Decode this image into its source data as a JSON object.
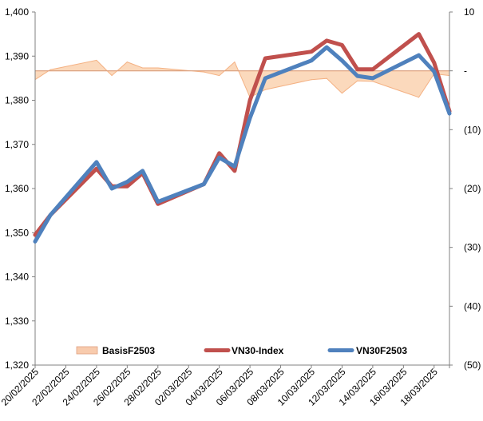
{
  "chart_data": {
    "type": "line",
    "title": "",
    "x": [
      "20/02/2025",
      "21/02/2025",
      "24/02/2025",
      "25/02/2025",
      "26/02/2025",
      "27/02/2025",
      "28/02/2025",
      "03/03/2025",
      "04/03/2025",
      "05/03/2025",
      "06/03/2025",
      "07/03/2025",
      "10/03/2025",
      "11/03/2025",
      "12/03/2025",
      "13/03/2025",
      "14/03/2025",
      "17/03/2025",
      "18/03/2025",
      "19/03/2025"
    ],
    "x_tick_labels": [
      "20/02/2025",
      "22/02/2025",
      "24/02/2025",
      "26/02/2025",
      "28/02/2025",
      "02/03/2025",
      "04/03/2025",
      "06/03/2025",
      "08/03/2025",
      "10/03/2025",
      "12/03/2025",
      "14/03/2025",
      "16/03/2025",
      "18/03/2025"
    ],
    "x_start": "20/02/2025",
    "x_end": "19/03/2025",
    "y_left": {
      "min": 1320,
      "max": 1400,
      "step": 10,
      "tick_labels": [
        "1,320",
        "1,330",
        "1,340",
        "1,350",
        "1,360",
        "1,370",
        "1,380",
        "1,390",
        "1,400"
      ]
    },
    "y_right": {
      "min": -50,
      "max": 10,
      "step": 10,
      "tick_labels": [
        "(50)",
        "(40)",
        "(30)",
        "(20)",
        "(10)",
        "-",
        "10"
      ]
    },
    "series": [
      {
        "name": "BasisF2503",
        "type": "area",
        "axis": "right",
        "color": "#f4b183",
        "values": [
          -1.5,
          0.2,
          1.8,
          -0.8,
          1.5,
          0.5,
          0.5,
          -0.2,
          -0.8,
          1.5,
          -4.5,
          -3.2,
          -1.5,
          -1.3,
          -3.8,
          -1.7,
          -1.8,
          -4.5,
          -0.5,
          -0.8
        ]
      },
      {
        "name": "VN30-Index",
        "type": "line",
        "axis": "left",
        "color": "#c0504d",
        "values": [
          1349.5,
          1354,
          1364.5,
          1360.5,
          1360.5,
          1363.5,
          1356.5,
          1361,
          1368,
          1364,
          1380,
          1389.5,
          1391,
          1393.5,
          1392.5,
          1387,
          1387,
          1395,
          1388.5,
          1377.5
        ]
      },
      {
        "name": "VN30F2503",
        "type": "line",
        "axis": "left",
        "color": "#4f81bd",
        "values": [
          1348,
          1354,
          1366,
          1360,
          1361.5,
          1364,
          1357,
          1361,
          1367,
          1365,
          1376,
          1385,
          1389,
          1392,
          1389,
          1385.5,
          1385,
          1390.2,
          1386.5,
          1377
        ]
      }
    ],
    "legend": {
      "placement": "bottom",
      "entries": [
        "BasisF2503",
        "VN30-Index",
        "VN30F2503"
      ]
    },
    "grid": false
  }
}
